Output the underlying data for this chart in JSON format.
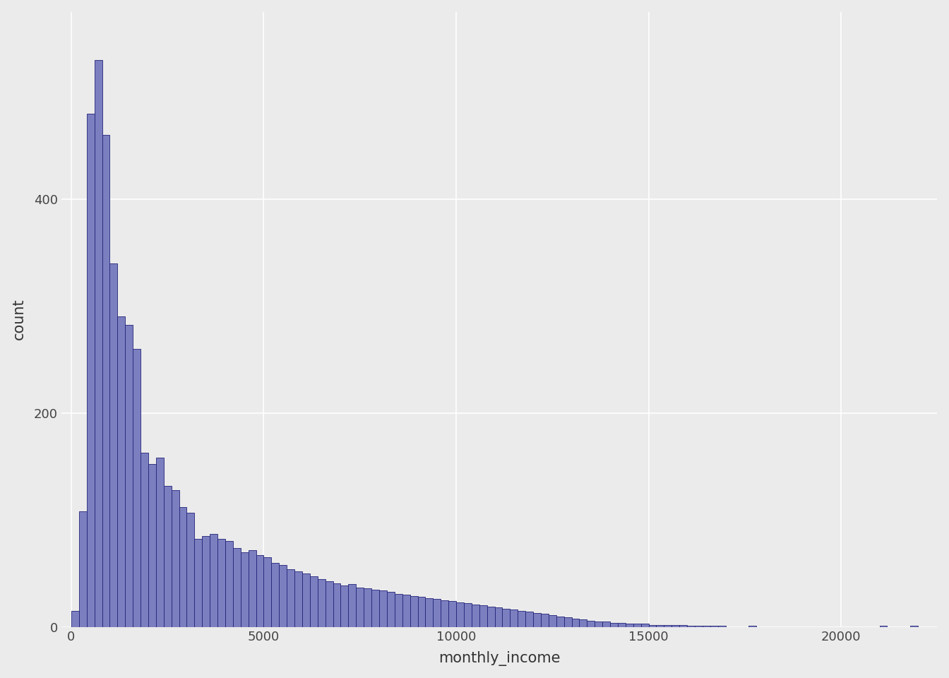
{
  "title": "",
  "xlabel": "monthly_income",
  "ylabel": "count",
  "bar_fill_color": "#7b7fbf",
  "bar_edge_color": "#23237a",
  "background_color": "#ebebeb",
  "panel_background": "#ebebeb",
  "grid_color": "#ffffff",
  "axis_text_color": "#333333",
  "xlim": [
    -250,
    22500
  ],
  "ylim": [
    0,
    575
  ],
  "xticks": [
    0,
    5000,
    10000,
    15000,
    20000
  ],
  "yticks": [
    0,
    200,
    400
  ],
  "bin_width": 200,
  "bar_counts": [
    15,
    108,
    480,
    530,
    460,
    340,
    290,
    282,
    260,
    163,
    152,
    158,
    132,
    128,
    112,
    107,
    82,
    85,
    87,
    82,
    80,
    74,
    70,
    72,
    67,
    65,
    60,
    58,
    54,
    52,
    50,
    47,
    45,
    43,
    41,
    39,
    40,
    37,
    36,
    35,
    34,
    33,
    31,
    30,
    29,
    28,
    27,
    26,
    25,
    24,
    23,
    22,
    21,
    20,
    19,
    18,
    17,
    16,
    15,
    14,
    13,
    12,
    11,
    10,
    9,
    8,
    7,
    6,
    5,
    5,
    4,
    4,
    3,
    3,
    3,
    2,
    2,
    2,
    2,
    2,
    1,
    1,
    1,
    1,
    1,
    0,
    0,
    0,
    1,
    0,
    0,
    0,
    0,
    0,
    0,
    0,
    0,
    0,
    0,
    0,
    0,
    0,
    0,
    0,
    0,
    1,
    0,
    0,
    0,
    1
  ]
}
